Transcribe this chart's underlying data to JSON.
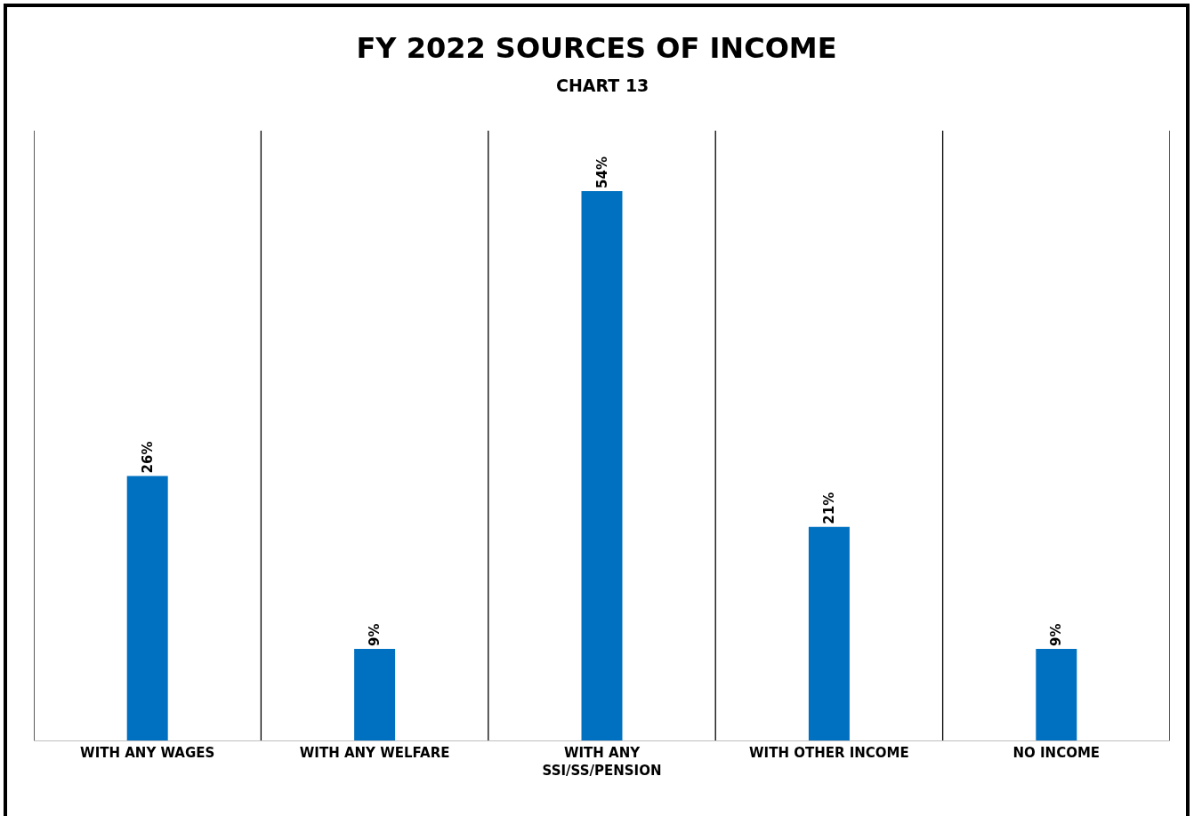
{
  "chart_data": {
    "type": "bar",
    "title": "FY 2022 SOURCES OF INCOME",
    "subtitle": "CHART 13",
    "categories": [
      "WITH ANY WAGES",
      "WITH ANY WELFARE",
      "WITH ANY SSI/SS/PENSION",
      "WITH OTHER INCOME",
      "NO INCOME"
    ],
    "values": [
      26,
      9,
      54,
      21,
      9
    ],
    "value_labels": [
      "26%",
      "9%",
      "54%",
      "21%",
      "9%"
    ],
    "color": "#0070c0",
    "grid": "x",
    "legend": false,
    "tick_labels": "x"
  }
}
